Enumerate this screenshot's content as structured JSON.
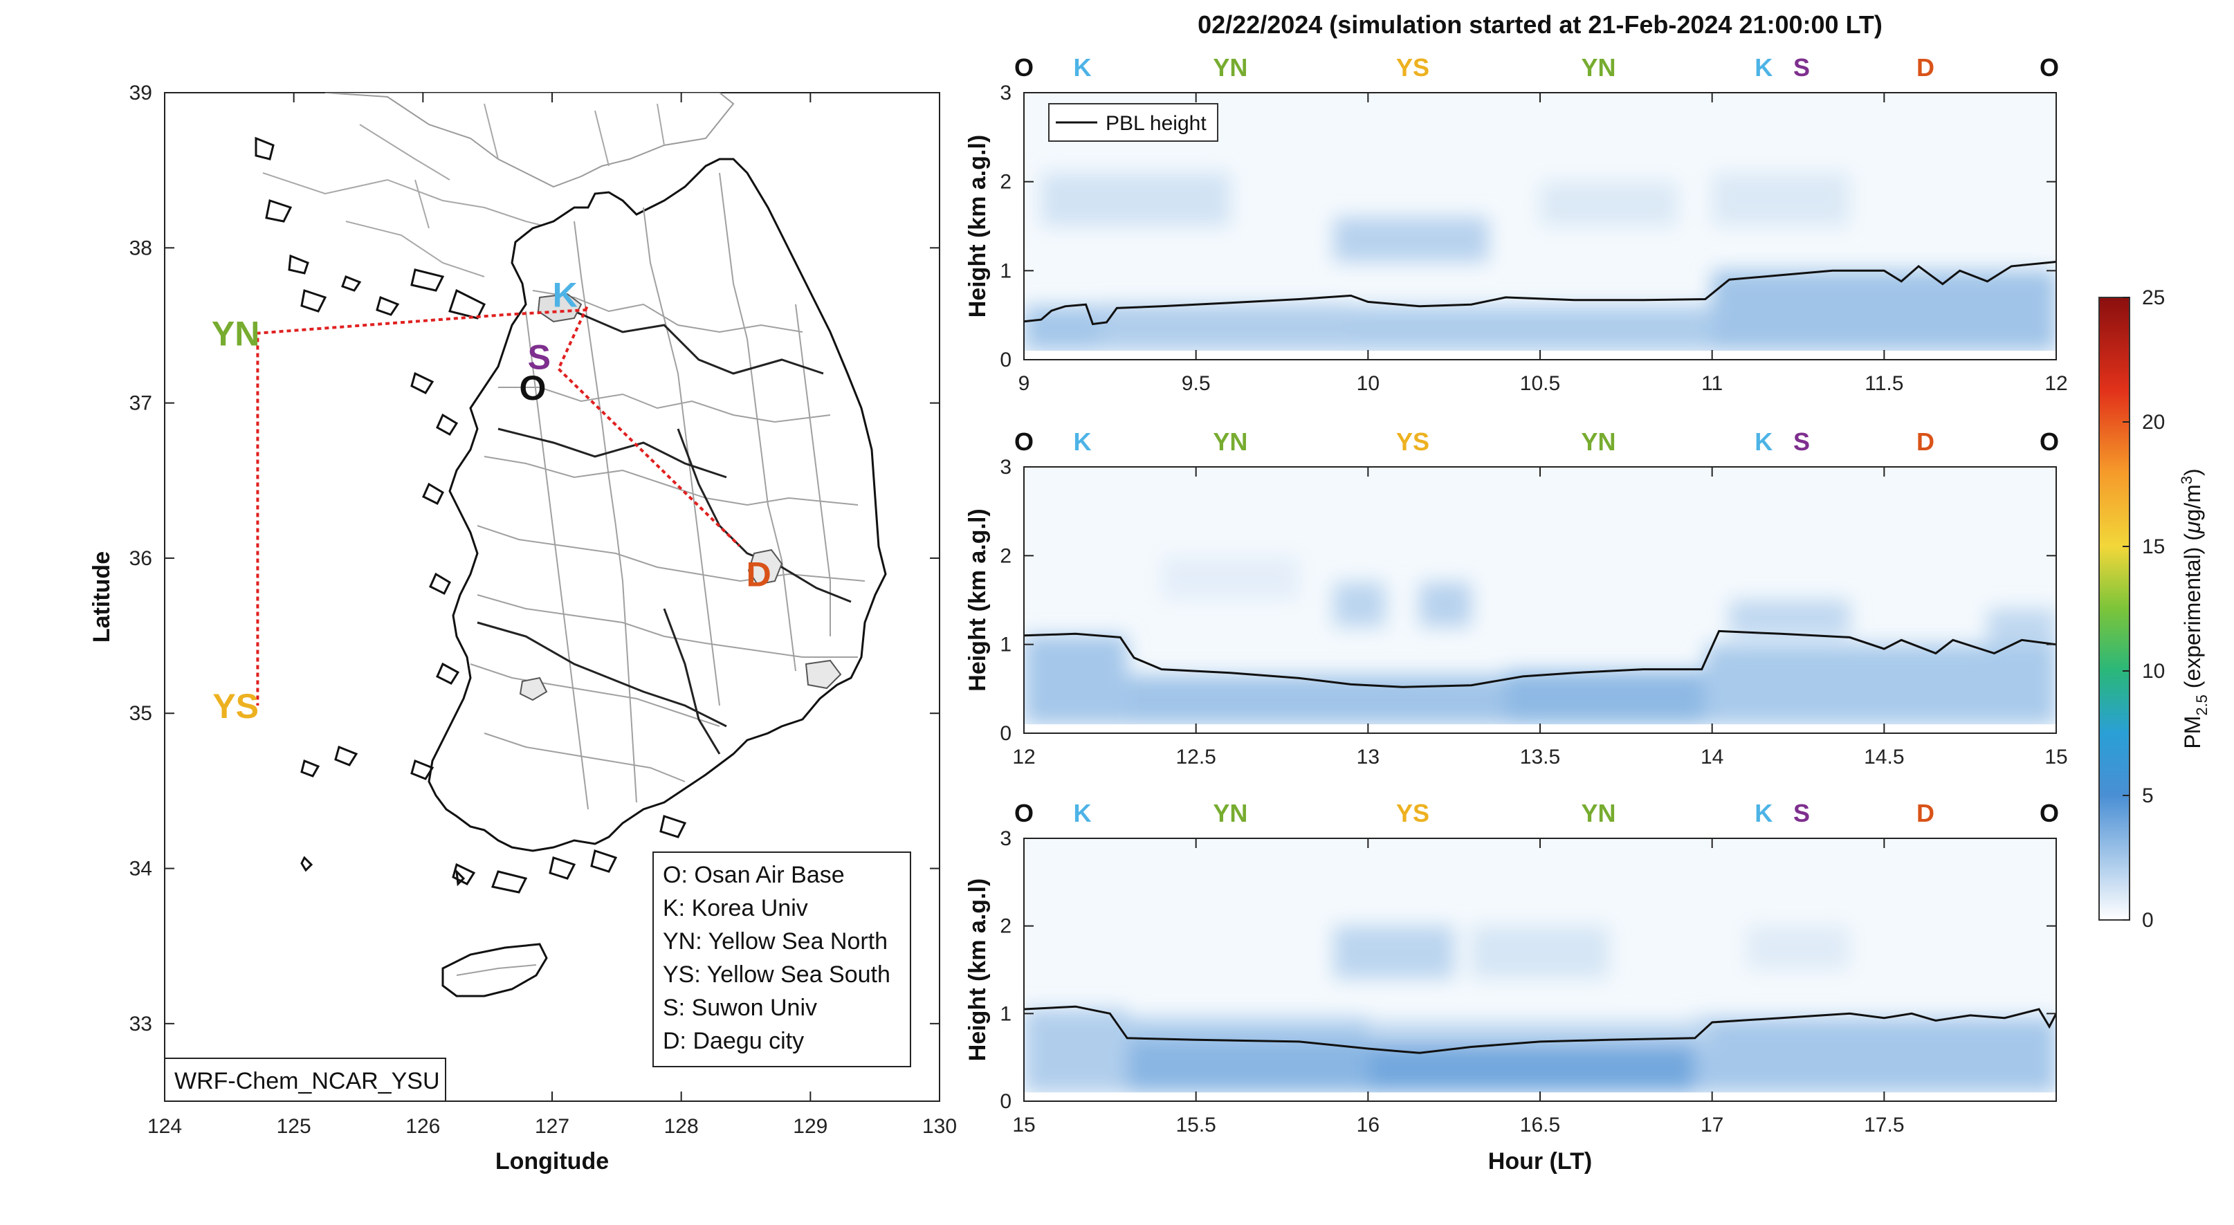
{
  "colors": {
    "O": "#111111",
    "K": "#4db3e6",
    "YN": "#77ac30",
    "YS": "#edb120",
    "S": "#7e2f8e",
    "D": "#d95319",
    "route": "#e02020",
    "pbl": "#111111"
  },
  "chart_data": [
    {
      "type": "map",
      "xlabel": "Longitude",
      "ylabel": "Latitude",
      "xlim": [
        124,
        130
      ],
      "ylim": [
        32.5,
        39
      ],
      "xticks": [
        "124",
        "125",
        "126",
        "127",
        "128",
        "129",
        "130"
      ],
      "yticks": [
        "33",
        "34",
        "35",
        "36",
        "37",
        "38",
        "39"
      ],
      "model_label": "WRF-Chem_NCAR_YSU",
      "sites": [
        {
          "code": "O",
          "lon": 126.85,
          "lat": 37.1,
          "name": "Osan Air Base"
        },
        {
          "code": "K",
          "lon": 127.1,
          "lat": 37.7,
          "name": "Korea Univ"
        },
        {
          "code": "YN",
          "lon": 124.55,
          "lat": 37.45,
          "name": "Yellow Sea North"
        },
        {
          "code": "YS",
          "lon": 124.55,
          "lat": 35.05,
          "name": "Yellow Sea South"
        },
        {
          "code": "S",
          "lon": 126.9,
          "lat": 37.3,
          "name": "Suwon Univ"
        },
        {
          "code": "D",
          "lon": 128.6,
          "lat": 35.9,
          "name": "Daegu city"
        }
      ],
      "route": [
        [
          127.27,
          37.6
        ],
        [
          126.65,
          37.57
        ],
        [
          124.72,
          37.45
        ],
        [
          124.72,
          35.05
        ]
      ],
      "route2": [
        [
          127.27,
          37.62
        ],
        [
          127.05,
          37.22
        ],
        [
          128.45,
          36.08
        ]
      ],
      "legend": [
        "O: Osan Air Base",
        "K: Korea Univ",
        "YN: Yellow Sea North",
        "YS: Yellow Sea South",
        "S: Suwon Univ",
        "D: Daegu city"
      ]
    },
    {
      "type": "heatmap",
      "title": "02/22/2024 (simulation started at 21-Feb-2024 21:00:00 LT)",
      "xlabel": "Hour (LT)",
      "ylabel": "Height (km a.g.l)",
      "ylim": [
        0,
        3
      ],
      "yticks": [
        "0",
        "1",
        "2",
        "3"
      ],
      "legend_entry": "PBL height",
      "colorbar": {
        "label": "PM2.5 (experimental) (μg/m3)",
        "label_main": "PM",
        "label_sub": "2.5",
        "label_rest": " (experimental) (",
        "label_mu": "μ",
        "label_unit": "g/m",
        "label_sup": "3",
        "label_close": ")",
        "ticks": [
          "0",
          "5",
          "10",
          "15",
          "20",
          "25"
        ],
        "range": [
          0,
          25
        ]
      },
      "panels": [
        {
          "xlim": [
            9,
            12
          ],
          "xticks": [
            "9",
            "9.5",
            "10",
            "10.5",
            "11",
            "11.5",
            "12"
          ],
          "segments": [
            {
              "code": "O",
              "x": 9.0
            },
            {
              "code": "K",
              "x": 9.17
            },
            {
              "code": "YN",
              "x": 9.6
            },
            {
              "code": "YS",
              "x": 10.13
            },
            {
              "code": "YN",
              "x": 10.67
            },
            {
              "code": "K",
              "x": 11.15
            },
            {
              "code": "S",
              "x": 11.26
            },
            {
              "code": "D",
              "x": 11.62
            },
            {
              "code": "O",
              "x": 11.98
            }
          ],
          "pbl": [
            [
              9.0,
              0.43
            ],
            [
              9.05,
              0.45
            ],
            [
              9.08,
              0.55
            ],
            [
              9.12,
              0.6
            ],
            [
              9.18,
              0.62
            ],
            [
              9.2,
              0.4
            ],
            [
              9.24,
              0.42
            ],
            [
              9.27,
              0.58
            ],
            [
              9.4,
              0.6
            ],
            [
              9.6,
              0.64
            ],
            [
              9.8,
              0.68
            ],
            [
              9.95,
              0.72
            ],
            [
              10.0,
              0.65
            ],
            [
              10.15,
              0.6
            ],
            [
              10.3,
              0.62
            ],
            [
              10.4,
              0.7
            ],
            [
              10.6,
              0.67
            ],
            [
              10.8,
              0.67
            ],
            [
              10.98,
              0.68
            ],
            [
              11.05,
              0.9
            ],
            [
              11.2,
              0.95
            ],
            [
              11.35,
              1.0
            ],
            [
              11.5,
              1.0
            ],
            [
              11.55,
              0.88
            ],
            [
              11.6,
              1.05
            ],
            [
              11.67,
              0.85
            ],
            [
              11.72,
              1.0
            ],
            [
              11.8,
              0.88
            ],
            [
              11.87,
              1.05
            ],
            [
              12.0,
              1.1
            ]
          ],
          "blobs": [
            {
              "x0": 9.0,
              "x1": 9.22,
              "y0": 0.1,
              "y1": 0.6,
              "v": 4.0
            },
            {
              "x0": 9.22,
              "x1": 9.95,
              "y0": 0.1,
              "y1": 0.62,
              "v": 3.5
            },
            {
              "x0": 9.95,
              "x1": 11.0,
              "y0": 0.1,
              "y1": 0.6,
              "v": 3.6
            },
            {
              "x0": 11.0,
              "x1": 12.0,
              "y0": 0.1,
              "y1": 1.0,
              "v": 4.2
            },
            {
              "x0": 9.05,
              "x1": 9.6,
              "y0": 1.5,
              "y1": 2.1,
              "v": 2.0
            },
            {
              "x0": 9.9,
              "x1": 10.35,
              "y0": 1.1,
              "y1": 1.6,
              "v": 3.2
            },
            {
              "x0": 10.5,
              "x1": 10.9,
              "y0": 1.5,
              "y1": 2.0,
              "v": 1.6
            },
            {
              "x0": 11.0,
              "x1": 11.4,
              "y0": 1.5,
              "y1": 2.1,
              "v": 1.6
            }
          ]
        },
        {
          "xlim": [
            12,
            15
          ],
          "xticks": [
            "12",
            "12.5",
            "13",
            "13.5",
            "14",
            "14.5",
            "15"
          ],
          "segments": [
            {
              "code": "O",
              "x": 12.0
            },
            {
              "code": "K",
              "x": 12.17
            },
            {
              "code": "YN",
              "x": 12.6
            },
            {
              "code": "YS",
              "x": 13.13
            },
            {
              "code": "YN",
              "x": 13.67
            },
            {
              "code": "K",
              "x": 14.15
            },
            {
              "code": "S",
              "x": 14.26
            },
            {
              "code": "D",
              "x": 14.62
            },
            {
              "code": "O",
              "x": 14.98
            }
          ],
          "pbl": [
            [
              12.0,
              1.1
            ],
            [
              12.15,
              1.12
            ],
            [
              12.28,
              1.08
            ],
            [
              12.32,
              0.85
            ],
            [
              12.4,
              0.72
            ],
            [
              12.6,
              0.68
            ],
            [
              12.8,
              0.62
            ],
            [
              12.95,
              0.55
            ],
            [
              13.1,
              0.52
            ],
            [
              13.3,
              0.54
            ],
            [
              13.45,
              0.64
            ],
            [
              13.6,
              0.68
            ],
            [
              13.8,
              0.72
            ],
            [
              13.97,
              0.72
            ],
            [
              14.02,
              1.15
            ],
            [
              14.2,
              1.12
            ],
            [
              14.4,
              1.08
            ],
            [
              14.5,
              0.95
            ],
            [
              14.55,
              1.05
            ],
            [
              14.65,
              0.9
            ],
            [
              14.7,
              1.05
            ],
            [
              14.82,
              0.9
            ],
            [
              14.9,
              1.05
            ],
            [
              15.0,
              1.0
            ]
          ],
          "blobs": [
            {
              "x0": 12.0,
              "x1": 12.3,
              "y0": 0.1,
              "y1": 1.1,
              "v": 4.0
            },
            {
              "x0": 12.3,
              "x1": 13.5,
              "y0": 0.1,
              "y1": 0.65,
              "v": 4.2
            },
            {
              "x0": 13.4,
              "x1": 13.98,
              "y0": 0.1,
              "y1": 0.7,
              "v": 5.0
            },
            {
              "x0": 13.98,
              "x1": 15.0,
              "y0": 0.1,
              "y1": 1.0,
              "v": 3.8
            },
            {
              "x0": 12.9,
              "x1": 13.05,
              "y0": 1.2,
              "y1": 1.7,
              "v": 3.0
            },
            {
              "x0": 13.15,
              "x1": 13.3,
              "y0": 1.2,
              "y1": 1.7,
              "v": 3.2
            },
            {
              "x0": 12.4,
              "x1": 12.8,
              "y0": 1.5,
              "y1": 2.0,
              "v": 1.2
            },
            {
              "x0": 14.05,
              "x1": 14.4,
              "y0": 1.1,
              "y1": 1.5,
              "v": 2.8
            },
            {
              "x0": 14.8,
              "x1": 15.0,
              "y0": 1.0,
              "y1": 1.4,
              "v": 2.8
            }
          ]
        },
        {
          "xlim": [
            15,
            18
          ],
          "xticks": [
            "15",
            "15.5",
            "16",
            "16.5",
            "17",
            "17.5"
          ],
          "segments": [
            {
              "code": "O",
              "x": 15.0
            },
            {
              "code": "K",
              "x": 15.17
            },
            {
              "code": "YN",
              "x": 15.6
            },
            {
              "code": "YS",
              "x": 16.13
            },
            {
              "code": "YN",
              "x": 16.67
            },
            {
              "code": "K",
              "x": 17.15
            },
            {
              "code": "S",
              "x": 17.26
            },
            {
              "code": "D",
              "x": 17.62
            },
            {
              "code": "O",
              "x": 17.98
            }
          ],
          "pbl": [
            [
              15.0,
              1.05
            ],
            [
              15.15,
              1.08
            ],
            [
              15.25,
              1.0
            ],
            [
              15.3,
              0.72
            ],
            [
              15.5,
              0.7
            ],
            [
              15.8,
              0.68
            ],
            [
              16.0,
              0.6
            ],
            [
              16.15,
              0.55
            ],
            [
              16.3,
              0.62
            ],
            [
              16.5,
              0.68
            ],
            [
              16.7,
              0.7
            ],
            [
              16.95,
              0.72
            ],
            [
              17.0,
              0.9
            ],
            [
              17.2,
              0.95
            ],
            [
              17.4,
              1.0
            ],
            [
              17.5,
              0.95
            ],
            [
              17.58,
              1.0
            ],
            [
              17.65,
              0.92
            ],
            [
              17.75,
              0.98
            ],
            [
              17.85,
              0.95
            ],
            [
              17.95,
              1.05
            ],
            [
              17.98,
              0.85
            ],
            [
              18.0,
              1.0
            ]
          ],
          "blobs": [
            {
              "x0": 15.0,
              "x1": 15.3,
              "y0": 0.1,
              "y1": 1.05,
              "v": 3.5
            },
            {
              "x0": 15.3,
              "x1": 16.0,
              "y0": 0.1,
              "y1": 0.7,
              "v": 5.2
            },
            {
              "x0": 16.0,
              "x1": 16.95,
              "y0": 0.1,
              "y1": 0.65,
              "v": 6.2
            },
            {
              "x0": 16.95,
              "x1": 18.0,
              "y0": 0.1,
              "y1": 0.95,
              "v": 4.0
            },
            {
              "x0": 15.3,
              "x1": 16.0,
              "y0": 0.7,
              "y1": 0.95,
              "v": 3.6
            },
            {
              "x0": 16.0,
              "x1": 17.0,
              "y0": 0.65,
              "y1": 0.9,
              "v": 3.0
            },
            {
              "x0": 15.9,
              "x1": 16.25,
              "y0": 1.4,
              "y1": 2.0,
              "v": 3.0
            },
            {
              "x0": 16.3,
              "x1": 16.7,
              "y0": 1.4,
              "y1": 2.0,
              "v": 1.8
            },
            {
              "x0": 17.1,
              "x1": 17.4,
              "y0": 1.5,
              "y1": 2.0,
              "v": 1.4
            }
          ]
        }
      ]
    }
  ]
}
